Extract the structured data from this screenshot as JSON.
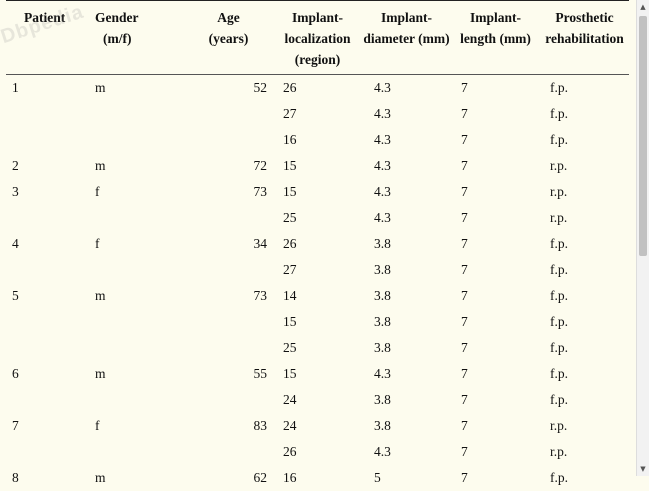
{
  "table": {
    "headers": [
      [
        "Patient",
        ""
      ],
      [
        "Gender",
        "(m/f)"
      ],
      [
        "Age",
        "(years)"
      ],
      [
        "Implant-",
        "localization (region)"
      ],
      [
        "Implant-",
        "diameter (mm)"
      ],
      [
        "Implant-",
        "length (mm)"
      ],
      [
        "Prosthetic",
        "rehabilitation"
      ]
    ],
    "rows": [
      [
        "1",
        "m",
        "52",
        "26",
        "4.3",
        "7",
        "f.p."
      ],
      [
        "",
        "",
        "",
        "27",
        "4.3",
        "7",
        "f.p."
      ],
      [
        "",
        "",
        "",
        "16",
        "4.3",
        "7",
        "f.p."
      ],
      [
        "2",
        "m",
        "72",
        "15",
        "4.3",
        "7",
        "r.p."
      ],
      [
        "3",
        "f",
        "73",
        "15",
        "4.3",
        "7",
        "r.p."
      ],
      [
        "",
        "",
        "",
        "25",
        "4.3",
        "7",
        "r.p."
      ],
      [
        "4",
        "f",
        "34",
        "26",
        "3.8",
        "7",
        "f.p."
      ],
      [
        "",
        "",
        "",
        "27",
        "3.8",
        "7",
        "f.p."
      ],
      [
        "5",
        "m",
        "73",
        "14",
        "3.8",
        "7",
        "f.p."
      ],
      [
        "",
        "",
        "",
        "15",
        "3.8",
        "7",
        "f.p."
      ],
      [
        "",
        "",
        "",
        "25",
        "3.8",
        "7",
        "f.p."
      ],
      [
        "6",
        "m",
        "55",
        "15",
        "4.3",
        "7",
        "f.p."
      ],
      [
        "",
        "",
        "",
        "24",
        "3.8",
        "7",
        "f.p."
      ],
      [
        "7",
        "f",
        "83",
        "24",
        "3.8",
        "7",
        "r.p."
      ],
      [
        "",
        "",
        "",
        "26",
        "4.3",
        "7",
        "r.p."
      ],
      [
        "8",
        "m",
        "62",
        "16",
        "5",
        "7",
        "f.p."
      ]
    ]
  },
  "watermark": "Dbpedia",
  "icons": {
    "scroll_up": "triangle-up-icon",
    "scroll_down": "triangle-down-icon"
  }
}
